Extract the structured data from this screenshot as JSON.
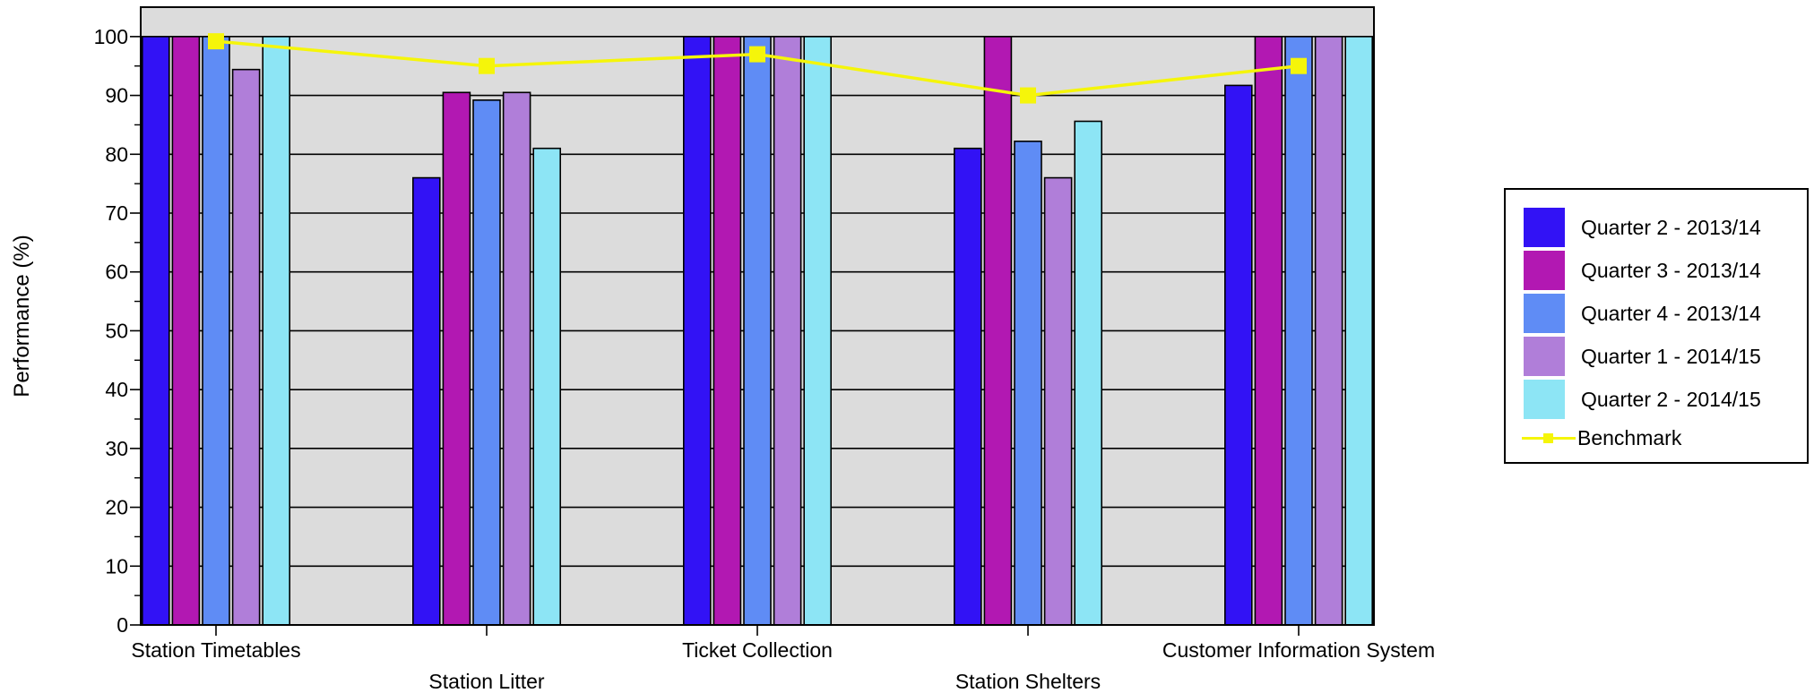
{
  "chart_data": {
    "type": "bar",
    "ylabel": "Performance (%)",
    "xlabel": "",
    "ylim": [
      0,
      105
    ],
    "y_ticks": [
      0,
      10,
      20,
      30,
      40,
      50,
      60,
      70,
      80,
      90,
      100
    ],
    "grid": true,
    "legend_position": "right",
    "categories": [
      "Station Timetables",
      "Station Litter",
      "Ticket Collection",
      "Station Shelters",
      "Customer Information System"
    ],
    "series": [
      {
        "name": "Quarter 2 - 2013/14",
        "color": "#3212f5",
        "values": [
          100,
          76,
          100,
          81,
          91.7
        ]
      },
      {
        "name": "Quarter 3 - 2013/14",
        "color": "#b218b2",
        "values": [
          100,
          90.5,
          100,
          100,
          100
        ]
      },
      {
        "name": "Quarter 4 - 2013/14",
        "color": "#5f8cf5",
        "values": [
          100,
          89.2,
          100,
          82.2,
          100
        ]
      },
      {
        "name": "Quarter 1 - 2014/15",
        "color": "#b07ed9",
        "values": [
          94.4,
          90.5,
          100,
          76,
          100
        ]
      },
      {
        "name": "Quarter 2 - 2014/15",
        "color": "#8de5f5",
        "values": [
          100,
          81,
          100,
          85.6,
          100
        ]
      }
    ],
    "benchmark": {
      "name": "Benchmark",
      "color": "#f5f50a",
      "values": [
        99.2,
        95,
        97,
        90,
        95
      ]
    },
    "plot_background": "#dcdcdc"
  }
}
